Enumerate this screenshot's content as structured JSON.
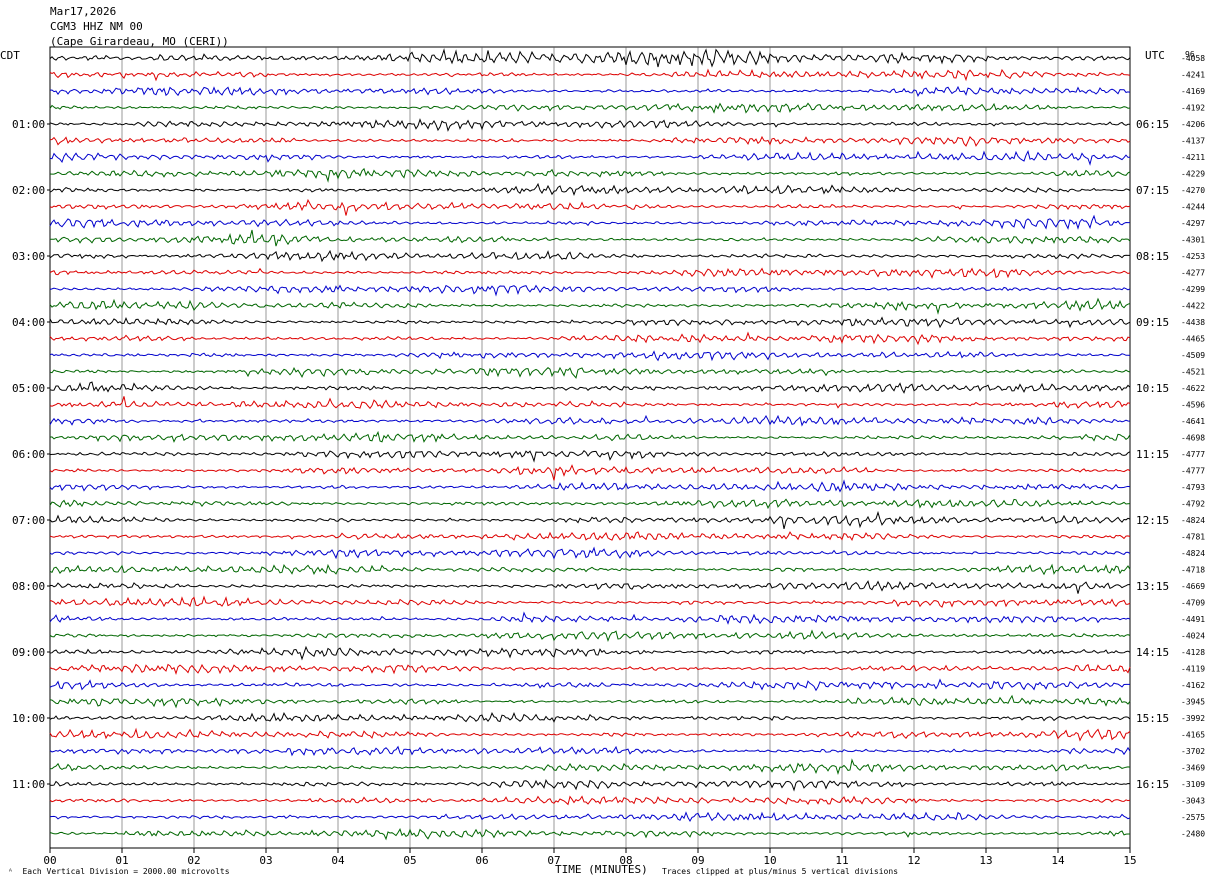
{
  "header": {
    "date": "Mar17,2026",
    "station": "CGM3 HHZ NM 00",
    "location": "(Cape Girardeau, MO (CERI))"
  },
  "tz": {
    "left": "CDT",
    "right": "UTC",
    "right_top_extra": "96"
  },
  "chart_data": {
    "type": "line",
    "subtype": "helicorder",
    "xlabel": "TIME (MINUTES)",
    "xlim": [
      0,
      15
    ],
    "x_ticks": [
      "00",
      "01",
      "02",
      "03",
      "04",
      "05",
      "06",
      "07",
      "08",
      "09",
      "10",
      "11",
      "12",
      "13",
      "14",
      "15"
    ],
    "rows_per_hour": 4,
    "row_colors": [
      "#000000",
      "#dd0000",
      "#0000cc",
      "#006600"
    ],
    "left_hour_labels": [
      "01:00",
      "02:00",
      "03:00",
      "04:00",
      "05:00",
      "06:00",
      "07:00",
      "08:00",
      "09:00",
      "10:00",
      "11:00"
    ],
    "right_hour_labels": [
      "06:15",
      "07:15",
      "08:15",
      "09:15",
      "10:15",
      "11:15",
      "12:15",
      "13:15",
      "14:15",
      "15:15",
      "16:15"
    ],
    "row_offsets": [
      -4058,
      -4241,
      -4169,
      -4192,
      -4206,
      -4137,
      -4211,
      -4229,
      -4270,
      -4244,
      -4297,
      -4301,
      -4253,
      -4277,
      -4299,
      -4422,
      -4438,
      -4465,
      -4509,
      -4521,
      -4622,
      -4596,
      -4641,
      -4698,
      -4777,
      -4777,
      -4793,
      -4792,
      -4824,
      -4781,
      -4824,
      -4718,
      -4669,
      -4709,
      -4491,
      -4024,
      -4128,
      -4119,
      -4162,
      -3945,
      -3992,
      -4165,
      -3702,
      -3469,
      -3109,
      -3043,
      -2575,
      -2480
    ]
  },
  "footer": {
    "left_note": "Each Vertical Division = 2000.00 microvolts",
    "right_note": "Traces clipped at plus/minus 5 vertical divisions"
  }
}
